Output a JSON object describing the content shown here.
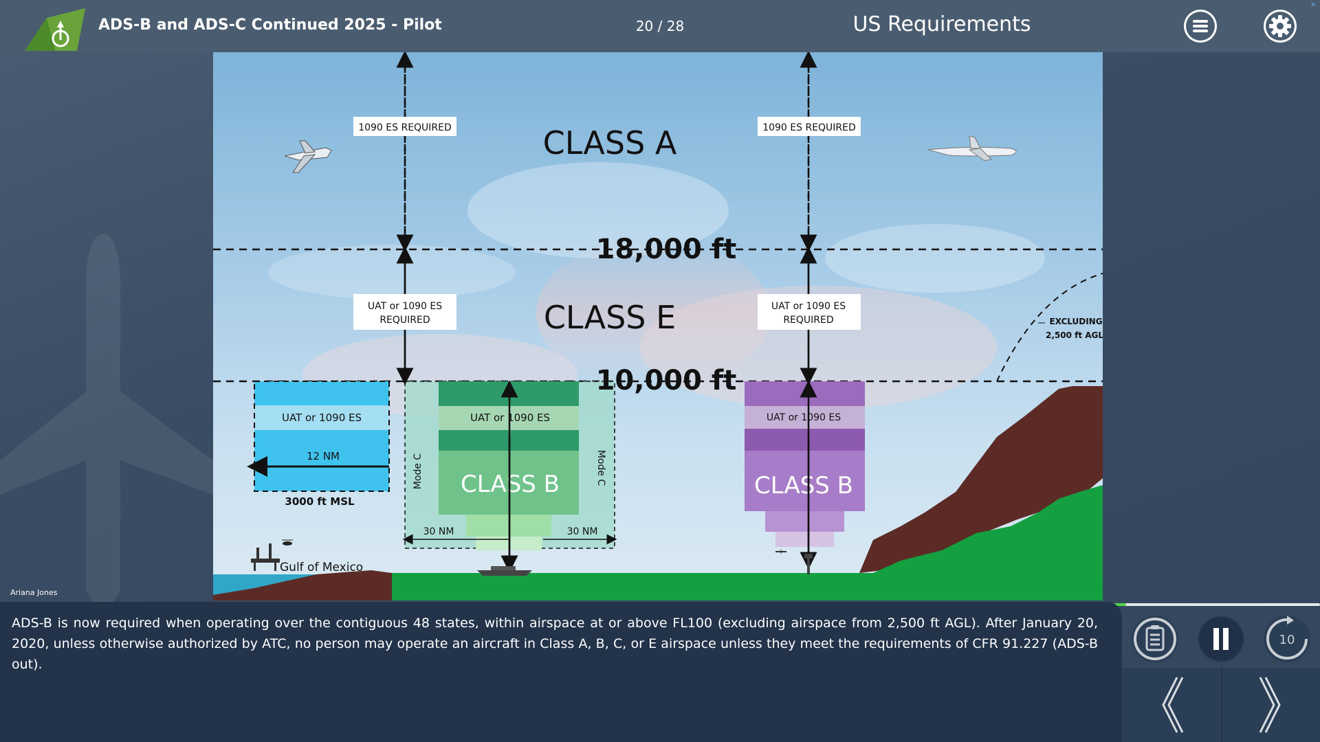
{
  "header": {
    "course_title": "ADS-B and ADS-C Continued 2025 - Pilot",
    "page_counter": "20 / 28",
    "section_title": "US Requirements"
  },
  "author": "Ariana Jones",
  "slide": {
    "labels": {
      "class_a": "CLASS A",
      "class_e": "CLASS E",
      "class_b_left": "CLASS B",
      "class_b_right": "CLASS B",
      "alt_18000": "18,000 ft",
      "alt_10000": "10,000 ft",
      "es_required_left": "1090 ES REQUIRED",
      "es_required_right": "1090 ES REQUIRED",
      "uat_required_left_line1": "UAT or 1090 ES",
      "uat_required_left_line2": "REQUIRED",
      "uat_required_right_line1": "UAT or 1090 ES",
      "uat_required_right_line2": "REQUIRED",
      "uat_gulf": "UAT or 1090 ES",
      "uat_class_b_left": "UAT or 1090 ES",
      "uat_class_b_right": "UAT or 1090 ES",
      "nm_12": "12 NM",
      "msl_3000": "3000 ft MSL",
      "nm_30_left": "30 NM",
      "nm_30_right": "30 NM",
      "mode_c_left": "Mode C",
      "mode_c_right": "Mode C",
      "gulf_of_mexico": "Gulf of Mexico",
      "excluding_line1": "EXCLUDING",
      "excluding_line2": "2,500 ft AGL"
    }
  },
  "narration": "ADS-B is now required when operating over the contiguous 48 states, within airspace at or above FL100 (excluding airspace from 2,500 ft AGL). After January 20, 2020, unless otherwise authorized by ATC, no person may operate an aircraft in Class A, B, C, or E airspace unless they meet the requirements of CFR 91.227 (ADS-B out).",
  "progress": {
    "fraction": 0.06
  },
  "controls": {
    "transcript_icon": "transcript-icon",
    "pause_icon": "pause-icon",
    "replay_icon": "replay-10-icon",
    "replay_seconds": "10",
    "prev_icon": "chevron-left-icon",
    "next_icon": "chevron-right-icon"
  },
  "colors": {
    "header_bg": "#4a5c70",
    "panel_bg": "#22334a",
    "progress": "#54d14a",
    "class_b_green": "#6fc38a",
    "class_b_purple": "#9b6bbd",
    "gulf_blue": "#3fc3ee",
    "terrain_red": "#5c2b26",
    "terrain_green": "#14a040"
  }
}
